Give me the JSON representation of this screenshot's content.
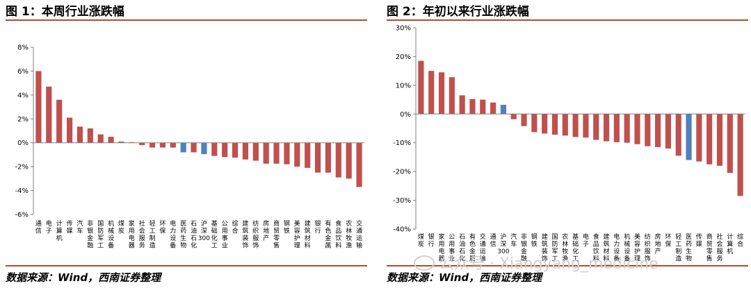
{
  "figures": [
    {
      "title": "图 1：本周行业涨跌幅",
      "source": "数据来源：Wind，西南证券整理"
    },
    {
      "title": "图 2：年初以来行业涨跌幅",
      "source": "数据来源：Wind，西南证券整理"
    }
  ],
  "watermark": "公众号 · Xiangyang_medicine",
  "colors": {
    "bar": "#c0504d",
    "highlight": "#4f81bd",
    "axis": "#7f7f7f",
    "rule": "#b5482f"
  },
  "chart_data": [
    {
      "type": "bar",
      "ylim": [
        -6,
        8
      ],
      "yticks": [
        "8%",
        "6%",
        "4%",
        "2%",
        "0%",
        "-2%",
        "-4%",
        "-6%"
      ],
      "categories": [
        "通信",
        "电子",
        "计算机",
        "传媒",
        "汽车",
        "非银金融",
        "国防军工",
        "机械设备",
        "煤炭",
        "家用电器",
        "社会服务",
        "轻工制造",
        "环保",
        "电力设备",
        "医药生物",
        "石油石化",
        "沪深300",
        "基础化工",
        "公用事业",
        "综合",
        "建筑装饰",
        "纺织服饰",
        "房地产",
        "商贸零售",
        "钢铁",
        "美容护理",
        "建筑材料",
        "银行",
        "有色金属",
        "食品饮料",
        "农林牧渔",
        "交通运输"
      ],
      "values": [
        6.0,
        4.7,
        3.6,
        2.1,
        1.35,
        1.2,
        0.7,
        0.5,
        0.1,
        0.05,
        -0.2,
        -0.4,
        -0.4,
        -0.4,
        -0.8,
        -0.8,
        -0.95,
        -1.1,
        -1.2,
        -1.25,
        -1.4,
        -1.5,
        -1.75,
        -1.75,
        -1.8,
        -2.0,
        -2.1,
        -2.5,
        -2.5,
        -2.9,
        -3.0,
        -3.7
      ],
      "highlight": [
        "医药生物",
        "沪深300"
      ]
    },
    {
      "type": "bar",
      "ylim": [
        -40,
        30
      ],
      "yticks": [
        "30%",
        "20%",
        "10%",
        "0%",
        "-10%",
        "-20%",
        "-30%",
        "-40%"
      ],
      "categories": [
        "煤炭",
        "银行",
        "家用电器",
        "公用事业",
        "石油石化",
        "有色金属",
        "交通运输",
        "通信",
        "沪深300",
        "汽车",
        "非银金融",
        "钢铁",
        "建筑装饰",
        "国防军工",
        "农林牧渔",
        "基础化工",
        "电子",
        "食品饮料",
        "建筑材料",
        "电力设备",
        "机械设备",
        "美容护理",
        "纺织服饰",
        "房地产",
        "环保",
        "轻工制造",
        "医药生物",
        "传媒",
        "商贸零售",
        "社会服务",
        "计算机",
        "综合"
      ],
      "values": [
        18.5,
        15.0,
        14.5,
        12.8,
        6.5,
        5.2,
        5.0,
        4.0,
        3.2,
        -1.8,
        -4.2,
        -6.3,
        -6.8,
        -7.2,
        -7.5,
        -8.0,
        -8.2,
        -9.0,
        -9.5,
        -9.8,
        -10.0,
        -10.5,
        -11.2,
        -11.5,
        -12.0,
        -14.5,
        -16.0,
        -16.5,
        -17.5,
        -18.0,
        -20.5,
        -28.5
      ],
      "highlight": [
        "医药生物",
        "沪深300"
      ]
    }
  ]
}
